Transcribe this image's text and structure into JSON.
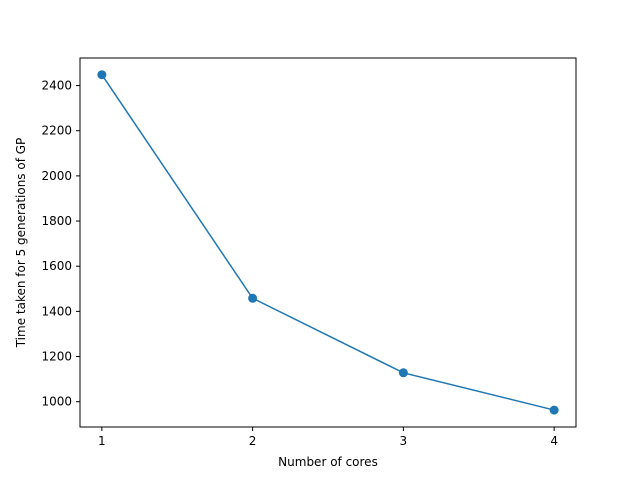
{
  "chart_data": {
    "type": "line",
    "title": "",
    "xlabel": "Number of cores",
    "ylabel": "Time taken for 5 generations of GP",
    "x": [
      1,
      2,
      3,
      4
    ],
    "series": [
      {
        "values": [
          2448,
          1458,
          1128,
          963
        ],
        "color": "#1f77b4",
        "marker": "circle"
      }
    ],
    "xlim": [
      0.855,
      4.145
    ],
    "ylim": [
      888,
      2522
    ],
    "xticks": [
      1,
      2,
      3,
      4
    ],
    "yticks": [
      1000,
      1200,
      1400,
      1600,
      1800,
      2000,
      2200,
      2400
    ],
    "grid": false,
    "legend": "none"
  }
}
